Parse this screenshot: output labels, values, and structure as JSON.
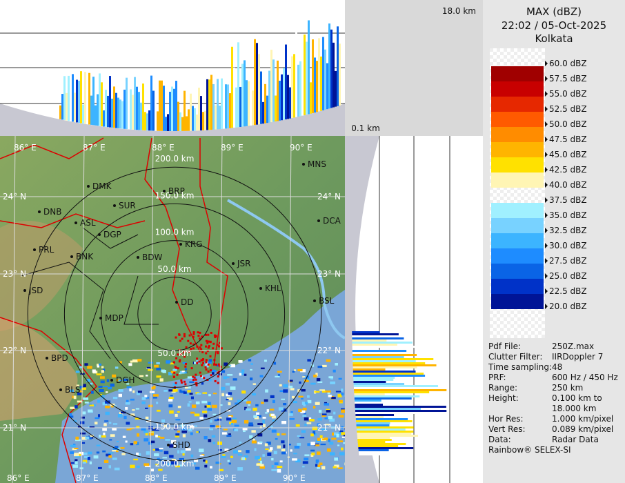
{
  "header": {
    "product": "MAX (dBZ)",
    "time": "22:02 / 05-Oct-2025",
    "site": "Kolkata"
  },
  "profile": {
    "top_height": "18.0 km",
    "bottom_height": "0.1 km"
  },
  "legend": [
    {
      "label": "60.0 dBZ",
      "color": "#ffffff"
    },
    {
      "label": "57.5 dBZ",
      "color": "#a00000"
    },
    {
      "label": "55.0 dBZ",
      "color": "#c80000"
    },
    {
      "label": "52.5 dBZ",
      "color": "#e62800"
    },
    {
      "label": "50.0 dBZ",
      "color": "#ff5a00"
    },
    {
      "label": "47.5 dBZ",
      "color": "#ff8c00"
    },
    {
      "label": "45.0 dBZ",
      "color": "#ffb400"
    },
    {
      "label": "42.5 dBZ",
      "color": "#ffe100"
    },
    {
      "label": "40.0 dBZ",
      "color": "#fff5b4"
    },
    {
      "label": "37.5 dBZ",
      "color": "#ffffff"
    },
    {
      "label": "35.0 dBZ",
      "color": "#a0f0ff"
    },
    {
      "label": "32.5 dBZ",
      "color": "#78d2ff"
    },
    {
      "label": "30.0 dBZ",
      "color": "#3cb4ff"
    },
    {
      "label": "27.5 dBZ",
      "color": "#1e8cff"
    },
    {
      "label": "25.0 dBZ",
      "color": "#0a64e6"
    },
    {
      "label": "22.5 dBZ",
      "color": "#0032c8"
    },
    {
      "label": "20.0 dBZ",
      "color": "#001496"
    }
  ],
  "info": [
    [
      "Pdf File:",
      "250Z.max"
    ],
    [
      "Clutter Filter:",
      "IIRDoppler 7"
    ],
    [
      "Time sampling:48"
    ],
    [
      "PRF:",
      "600 Hz / 450 Hz"
    ],
    [
      "Range:",
      "250 km"
    ],
    [
      "Height:",
      "0.100 km to 18.000 km"
    ],
    [
      "Hor Res:",
      "1.000 km/pixel"
    ],
    [
      "Vert Res:",
      "0.089 km/pixel"
    ],
    [
      "Data:",
      "Radar Data"
    ],
    [
      "Rainbow® SELEX-SI"
    ]
  ],
  "map": {
    "lon_labels": [
      "86° E",
      "87° E",
      "88° E",
      "89° E",
      "90° E"
    ],
    "lat_labels": [
      "24° N",
      "23° N",
      "22° N",
      "21° N"
    ],
    "ring_labels": [
      "50.0 km",
      "100.0 km",
      "150.0 km",
      "200.0 km"
    ],
    "cities": [
      "MNS",
      "DMK",
      "BRP",
      "DNB",
      "SUR",
      "ASL",
      "DCA",
      "DGP",
      "KRG",
      "PRL",
      "BNK",
      "BDW",
      "JSR",
      "KHL",
      "JSD",
      "DD",
      "BSL",
      "MDP",
      "BPD",
      "DGH",
      "BLS",
      "SHD"
    ]
  }
}
